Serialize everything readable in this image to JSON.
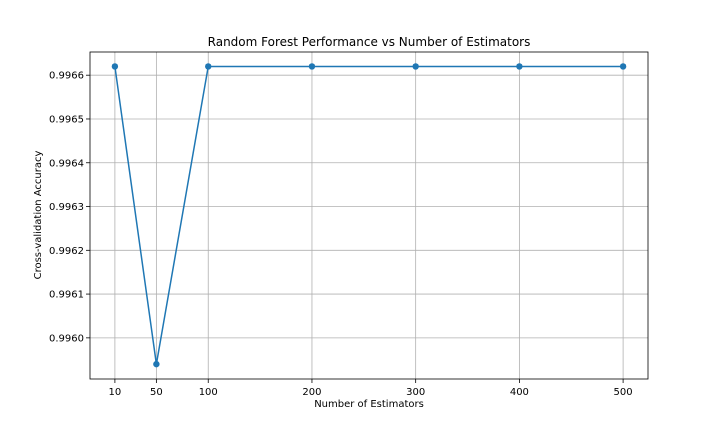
{
  "chart_data": {
    "type": "line",
    "title": "Random Forest Performance vs Number of Estimators",
    "xlabel": "Number of Estimators",
    "ylabel": "Cross-validation Accuracy",
    "x": [
      10,
      50,
      100,
      200,
      300,
      400,
      500
    ],
    "series": [
      {
        "values": [
          0.99662,
          0.99594,
          0.99662,
          0.99662,
          0.99662,
          0.99662,
          0.99662
        ],
        "color": "#1f77b4",
        "marker": "circle"
      }
    ],
    "xticks": [
      10,
      50,
      100,
      200,
      300,
      400,
      500
    ],
    "xtick_labels": [
      "10",
      "50",
      "100",
      "200",
      "300",
      "400",
      "500"
    ],
    "yticks": [
      0.996,
      0.9961,
      0.9962,
      0.9963,
      0.9964,
      0.9965,
      0.9966
    ],
    "ytick_labels": [
      "0.9960",
      "0.9961",
      "0.9962",
      "0.9963",
      "0.9964",
      "0.9965",
      "0.9966"
    ],
    "xlim": [
      -14,
      524
    ],
    "ylim": [
      0.995906,
      0.996653
    ],
    "grid": true,
    "legend": false
  }
}
